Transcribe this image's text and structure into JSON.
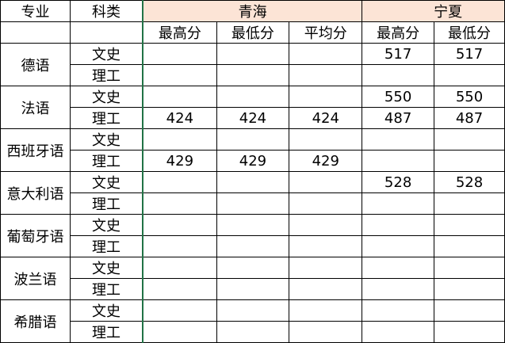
{
  "header": {
    "major": "专业",
    "category": "科类",
    "province1": "青海",
    "province2": "宁夏",
    "cols": [
      "最高分",
      "最低分",
      "平均分",
      "最高分",
      "最低分"
    ]
  },
  "colors": {
    "province_header_bg": "#fce4d6",
    "frozen_divider": "#217346"
  },
  "rows": [
    {
      "major": "德语",
      "cells": [
        [
          "文史",
          "",
          "",
          "",
          "517",
          "517"
        ],
        [
          "理工",
          "",
          "",
          "",
          "",
          ""
        ]
      ]
    },
    {
      "major": "法语",
      "cells": [
        [
          "文史",
          "",
          "",
          "",
          "550",
          "550"
        ],
        [
          "理工",
          "424",
          "424",
          "424",
          "487",
          "487"
        ]
      ]
    },
    {
      "major": "西班牙语",
      "cells": [
        [
          "文史",
          "",
          "",
          "",
          "",
          ""
        ],
        [
          "理工",
          "429",
          "429",
          "429",
          "",
          ""
        ]
      ]
    },
    {
      "major": "意大利语",
      "cells": [
        [
          "文史",
          "",
          "",
          "",
          "528",
          "528"
        ],
        [
          "理工",
          "",
          "",
          "",
          "",
          ""
        ]
      ]
    },
    {
      "major": "葡萄牙语",
      "cells": [
        [
          "文史",
          "",
          "",
          "",
          "",
          ""
        ],
        [
          "理工",
          "",
          "",
          "",
          "",
          ""
        ]
      ]
    },
    {
      "major": "波兰语",
      "cells": [
        [
          "文史",
          "",
          "",
          "",
          "",
          ""
        ],
        [
          "理工",
          "",
          "",
          "",
          "",
          ""
        ]
      ]
    },
    {
      "major": "希腊语",
      "cells": [
        [
          "文史",
          "",
          "",
          "",
          "",
          ""
        ],
        [
          "理工",
          "",
          "",
          "",
          "",
          ""
        ]
      ]
    }
  ]
}
